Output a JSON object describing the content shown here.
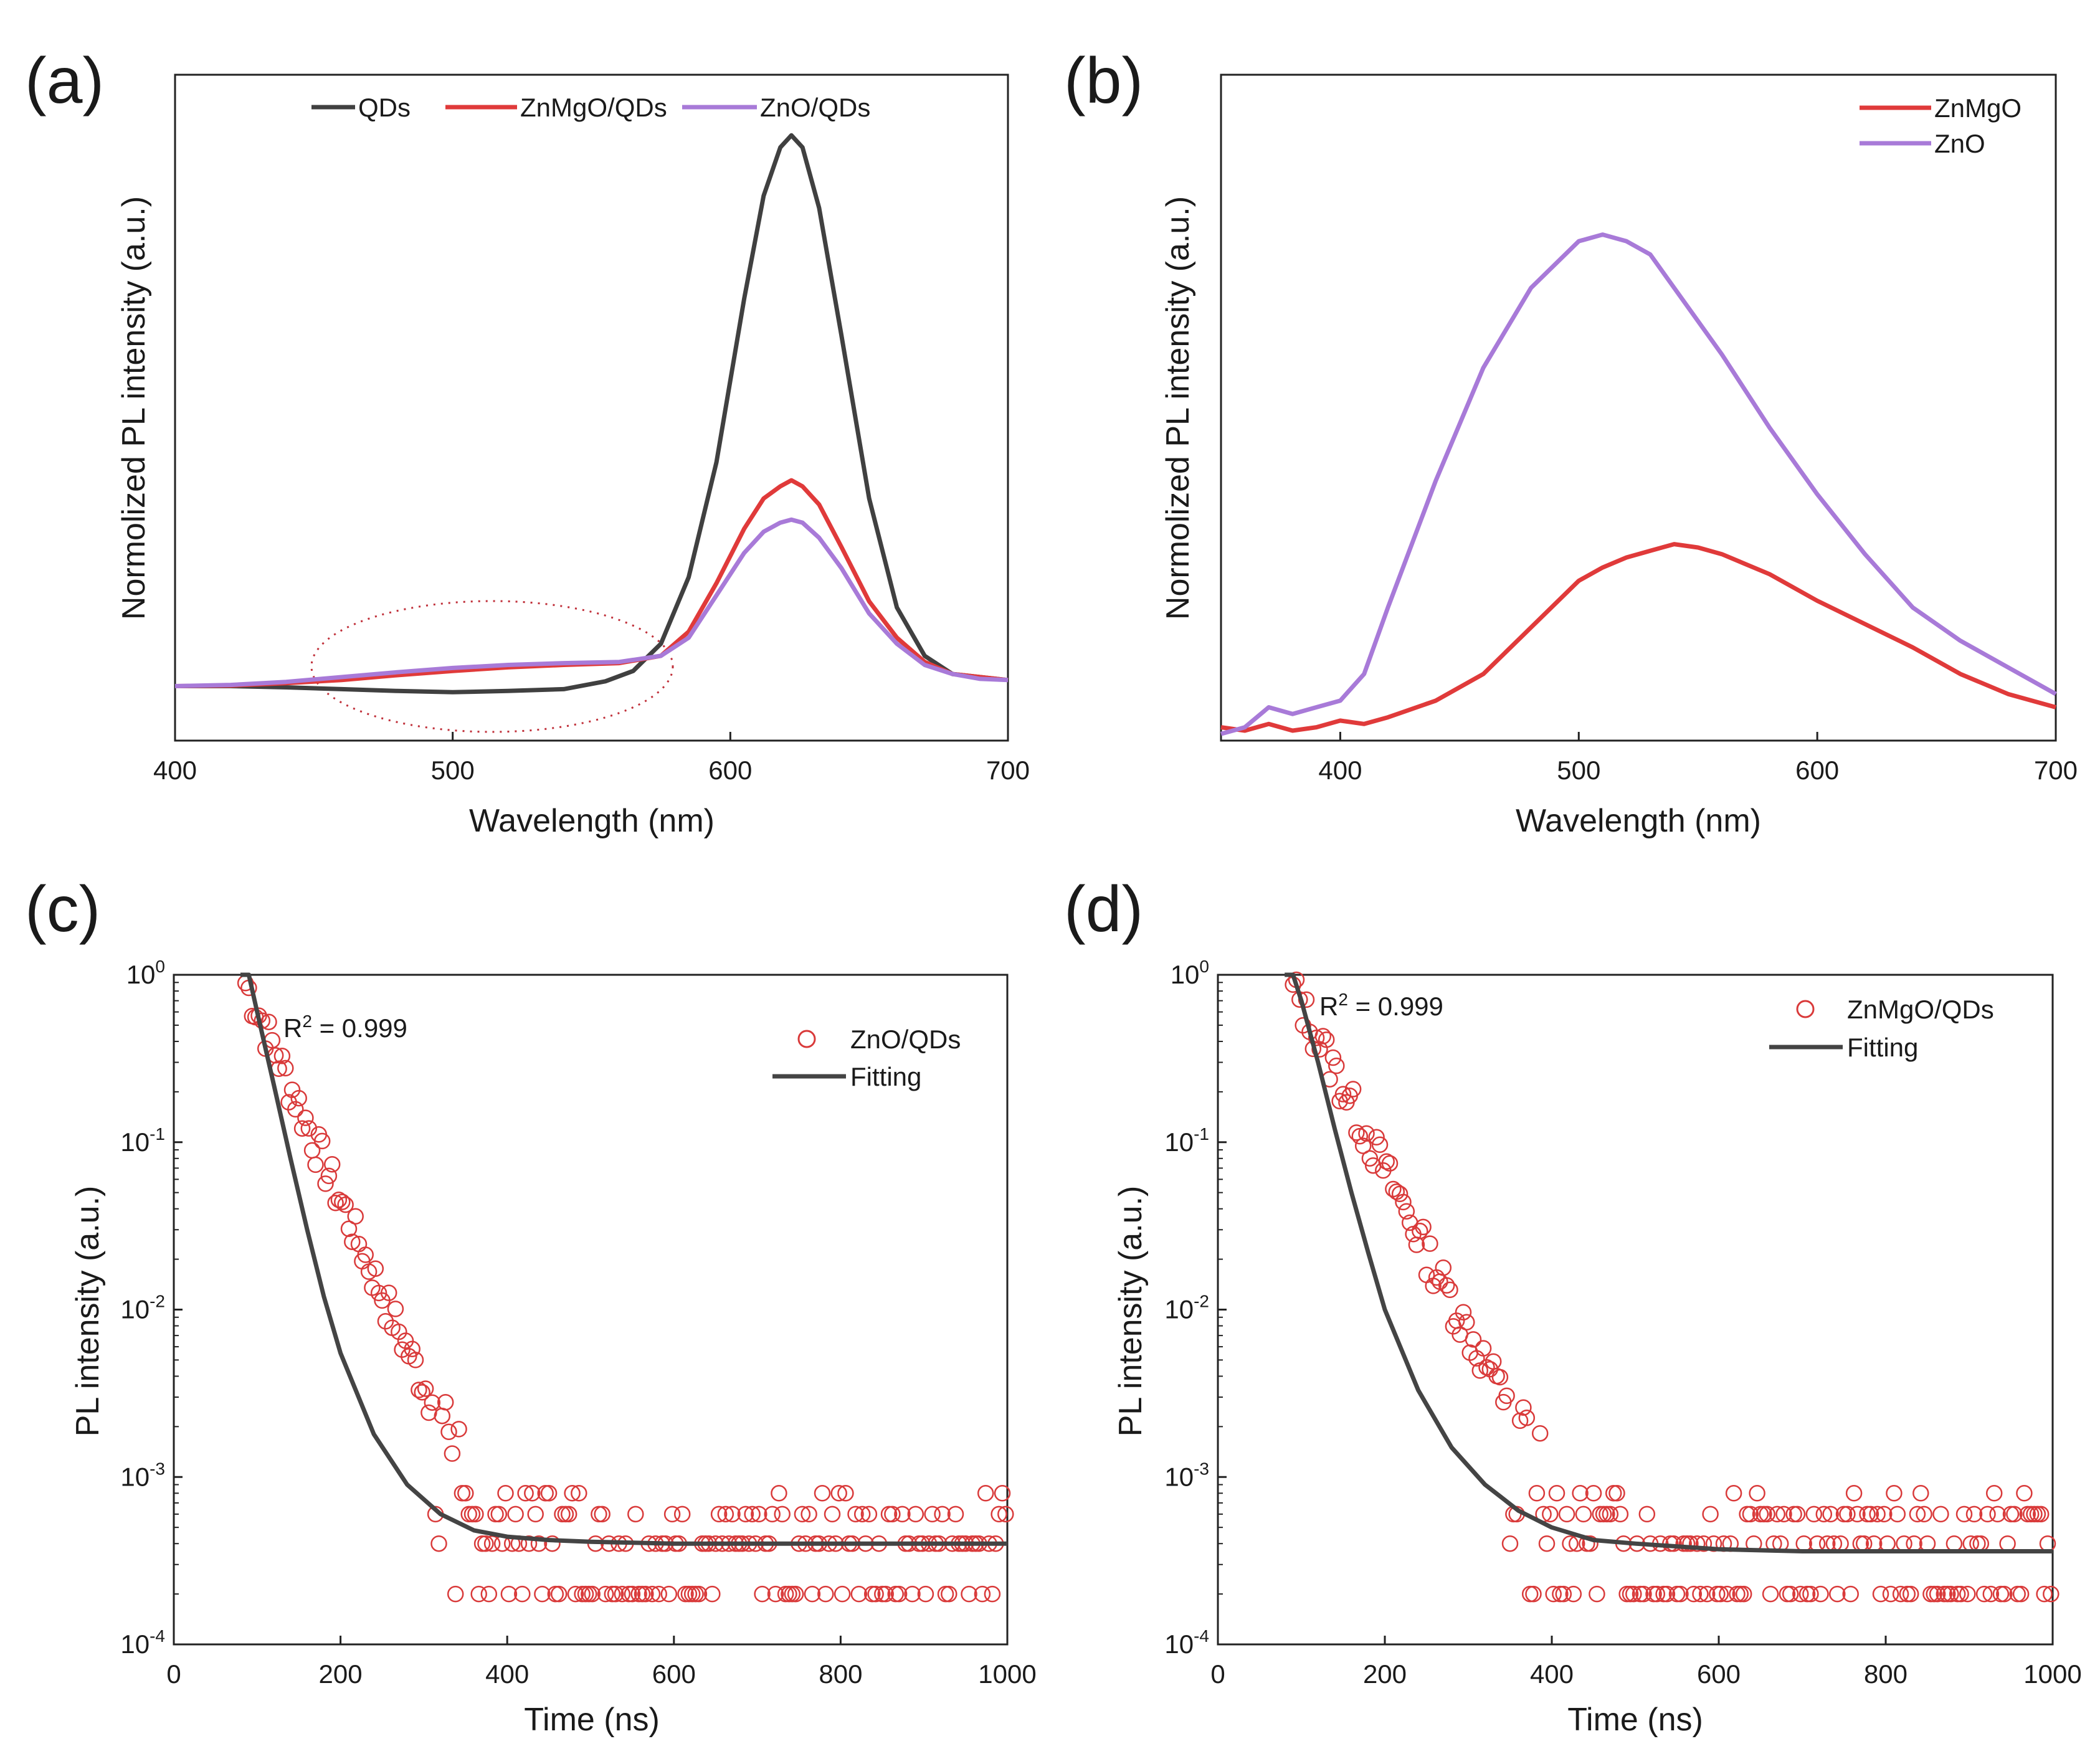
{
  "chart_data": [
    {
      "panel": "(a)",
      "type": "line",
      "xlabel": "Wavelength (nm)",
      "ylabel": "Normolized PL intensity (a.u.)",
      "xlim": [
        400,
        700
      ],
      "ylim": [
        0,
        1.1
      ],
      "xticks": [
        "400",
        "500",
        "600",
        "700"
      ],
      "annotation": "dotted ellipse around 455-570 nm",
      "series": [
        {
          "name": "QDs",
          "color": "#404040",
          "x": [
            400,
            420,
            440,
            460,
            480,
            500,
            520,
            540,
            555,
            565,
            575,
            585,
            595,
            605,
            612,
            618,
            622,
            626,
            632,
            640,
            650,
            660,
            670,
            680,
            690,
            700
          ],
          "y": [
            0.09,
            0.09,
            0.088,
            0.085,
            0.082,
            0.08,
            0.082,
            0.085,
            0.098,
            0.115,
            0.16,
            0.27,
            0.46,
            0.73,
            0.9,
            0.98,
            1.0,
            0.98,
            0.88,
            0.67,
            0.4,
            0.22,
            0.14,
            0.11,
            0.105,
            0.1
          ]
        },
        {
          "name": "ZnMgO/QDs",
          "color": "#e03a3a",
          "x": [
            400,
            420,
            440,
            460,
            480,
            500,
            520,
            540,
            560,
            575,
            585,
            595,
            605,
            612,
            618,
            622,
            626,
            632,
            640,
            650,
            660,
            670,
            680,
            690,
            700
          ],
          "y": [
            0.09,
            0.091,
            0.095,
            0.1,
            0.108,
            0.115,
            0.121,
            0.125,
            0.128,
            0.14,
            0.18,
            0.26,
            0.35,
            0.4,
            0.42,
            0.43,
            0.42,
            0.39,
            0.32,
            0.23,
            0.17,
            0.13,
            0.11,
            0.105,
            0.1
          ]
        },
        {
          "name": "ZnO/QDs",
          "color": "#a87ad8",
          "x": [
            400,
            420,
            440,
            460,
            480,
            500,
            520,
            540,
            560,
            575,
            585,
            595,
            605,
            612,
            618,
            622,
            626,
            632,
            640,
            650,
            660,
            670,
            680,
            690,
            700
          ],
          "y": [
            0.09,
            0.092,
            0.097,
            0.105,
            0.113,
            0.12,
            0.125,
            0.128,
            0.13,
            0.14,
            0.17,
            0.24,
            0.31,
            0.345,
            0.36,
            0.365,
            0.36,
            0.335,
            0.285,
            0.21,
            0.16,
            0.125,
            0.11,
            0.102,
            0.1
          ]
        }
      ]
    },
    {
      "panel": "(b)",
      "type": "line",
      "xlabel": "Wavelength (nm)",
      "ylabel": "Normolized PL intensity (a.u.)",
      "xlim": [
        350,
        700
      ],
      "ylim": [
        0,
        1.0
      ],
      "xticks": [
        "400",
        "500",
        "600",
        "700"
      ],
      "series": [
        {
          "name": "ZnMgO",
          "color": "#e03a3a",
          "x": [
            350,
            360,
            370,
            380,
            390,
            400,
            410,
            420,
            440,
            460,
            480,
            500,
            510,
            520,
            530,
            540,
            550,
            560,
            580,
            600,
            620,
            640,
            660,
            680,
            700
          ],
          "y": [
            0.02,
            0.015,
            0.025,
            0.015,
            0.02,
            0.03,
            0.025,
            0.035,
            0.06,
            0.1,
            0.17,
            0.24,
            0.26,
            0.275,
            0.285,
            0.295,
            0.29,
            0.28,
            0.25,
            0.21,
            0.175,
            0.14,
            0.1,
            0.07,
            0.05
          ]
        },
        {
          "name": "ZnO",
          "color": "#a87ad8",
          "x": [
            350,
            360,
            370,
            380,
            390,
            400,
            410,
            420,
            440,
            460,
            480,
            500,
            510,
            520,
            530,
            540,
            560,
            580,
            600,
            620,
            640,
            660,
            680,
            700
          ],
          "y": [
            0.01,
            0.02,
            0.05,
            0.04,
            0.05,
            0.06,
            0.1,
            0.2,
            0.39,
            0.56,
            0.68,
            0.75,
            0.76,
            0.75,
            0.73,
            0.68,
            0.58,
            0.47,
            0.37,
            0.28,
            0.2,
            0.15,
            0.11,
            0.07
          ]
        }
      ]
    },
    {
      "panel": "(c)",
      "type": "scatter",
      "xlabel": "Time (ns)",
      "ylabel": "PL intensity (a.u.)",
      "xlim": [
        0,
        1000
      ],
      "ylim": [
        0.0001,
        1
      ],
      "yscale": "log",
      "xticks": [
        "0",
        "200",
        "400",
        "600",
        "800",
        "1000"
      ],
      "annotation": "R2 = 0.999",
      "series": [
        {
          "name": "ZnO/QDs",
          "kind": "markers",
          "color": "#d93a3a",
          "decay": {
            "t0": 80,
            "tau": 38,
            "offset": 0.0004
          },
          "floor_levels": [
            0.0002,
            0.0004,
            0.0006,
            0.0008
          ]
        },
        {
          "name": "Fitting",
          "kind": "line",
          "color": "#444444",
          "x": [
            80,
            90,
            100,
            120,
            140,
            160,
            180,
            200,
            240,
            280,
            320,
            360,
            400,
            450,
            500,
            600,
            700,
            800,
            900,
            1000
          ],
          "y": [
            1.5,
            1.0,
            0.6,
            0.22,
            0.08,
            0.03,
            0.012,
            0.0055,
            0.0018,
            0.0009,
            0.0006,
            0.00048,
            0.00044,
            0.00042,
            0.00041,
            0.0004,
            0.0004,
            0.0004,
            0.0004,
            0.0004
          ]
        }
      ]
    },
    {
      "panel": "(d)",
      "type": "scatter",
      "xlabel": "Time (ns)",
      "ylabel": "PL intensity (a.u.)",
      "xlim": [
        0,
        1000
      ],
      "ylim": [
        0.0001,
        1
      ],
      "yscale": "log",
      "xticks": [
        "0",
        "200",
        "400",
        "600",
        "800",
        "1000"
      ],
      "annotation": "R2 = 0.999",
      "series": [
        {
          "name": "ZnMgO/QDs",
          "kind": "markers",
          "color": "#d93a3a",
          "decay": {
            "t0": 80,
            "tau": 44,
            "offset": 0.00036
          },
          "floor_levels": [
            0.0002,
            0.0004,
            0.0006,
            0.0008
          ]
        },
        {
          "name": "Fitting",
          "kind": "line",
          "color": "#444444",
          "x": [
            80,
            90,
            100,
            120,
            140,
            160,
            180,
            200,
            240,
            280,
            320,
            360,
            400,
            450,
            500,
            600,
            700,
            800,
            900,
            1000
          ],
          "y": [
            1.6,
            1.1,
            0.7,
            0.3,
            0.12,
            0.05,
            0.022,
            0.01,
            0.0033,
            0.0015,
            0.0009,
            0.00063,
            0.0005,
            0.00042,
            0.0004,
            0.00037,
            0.00036,
            0.00036,
            0.00036,
            0.00036
          ]
        }
      ]
    }
  ],
  "text": {
    "r2_prefix": "R",
    "r2_sup": "2",
    "r2_value": " = 0.999",
    "y_log_base": "10",
    "y_log_exps": [
      "0",
      "-1",
      "-2",
      "-3",
      "-4"
    ]
  }
}
